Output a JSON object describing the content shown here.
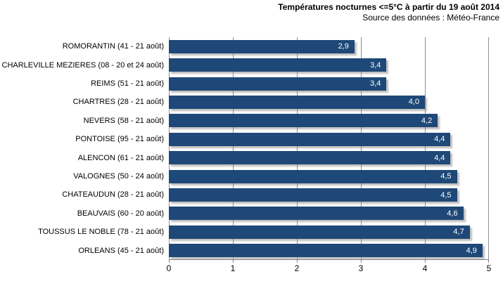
{
  "header": {
    "title": "Températures nocturnes <=5°C à partir du 19 août 2014",
    "subtitle": "Source des données : Météo-France"
  },
  "chart_data": {
    "type": "bar",
    "orientation": "horizontal",
    "title": "Températures nocturnes <=5°C à partir du 19 août 2014",
    "subtitle": "Source des données : Météo-France",
    "xlabel": "",
    "ylabel": "",
    "xlim": [
      0,
      5
    ],
    "x_ticks": [
      "0",
      "1",
      "2",
      "3",
      "4",
      "5"
    ],
    "grid": true,
    "legend": false,
    "categories": [
      "ROMORANTIN (41 - 21 août)",
      "CHARLEVILLE MEZIERES (08 - 20 et 24 août)",
      "REIMS (51 - 21 août)",
      "CHARTRES (28 - 21 août)",
      "NEVERS (58 - 21 août)",
      "PONTOISE (95 - 21 août)",
      "ALENCON (61 - 21 août)",
      "VALOGNES (50 - 24 août)",
      "CHATEAUDUN (28 - 21 août)",
      "BEAUVAIS (60 - 20 août)",
      "TOUSSUS LE NOBLE (78 - 21 août)",
      "ORLEANS (45 - 21 août)"
    ],
    "values": [
      2.9,
      3.4,
      3.4,
      4.0,
      4.2,
      4.4,
      4.4,
      4.5,
      4.5,
      4.6,
      4.7,
      4.9
    ],
    "value_labels": [
      "2,9",
      "3,4",
      "3,4",
      "4,0",
      "4,2",
      "4,4",
      "4,4",
      "4,5",
      "4,5",
      "4,6",
      "4,7",
      "4,9"
    ],
    "colors": {
      "bar": "#1e4877",
      "grid": "#8f8f8f",
      "axis": "#808080",
      "text": "#000000",
      "value_text": "#ffffff",
      "background": "#ffffff"
    }
  }
}
